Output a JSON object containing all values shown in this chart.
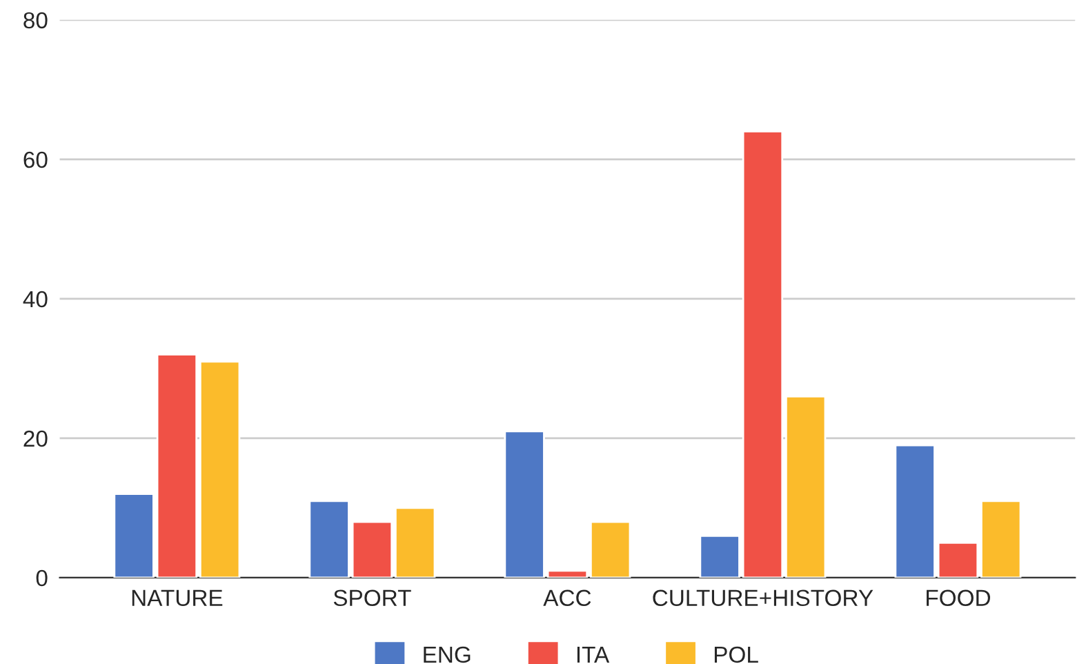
{
  "chart_data": {
    "type": "bar",
    "categories": [
      "NATURE",
      "SPORT",
      "ACC",
      "CULTURE+HISTORY",
      "FOOD"
    ],
    "series": [
      {
        "name": "ENG",
        "color": "#4e78c5",
        "values": [
          12,
          11,
          21,
          6,
          19
        ]
      },
      {
        "name": "ITA",
        "color": "#f05146",
        "values": [
          32,
          8,
          1,
          64,
          5
        ]
      },
      {
        "name": "POL",
        "color": "#fbbb2b",
        "values": [
          31,
          10,
          8,
          26,
          11
        ]
      }
    ],
    "ylim": [
      0,
      80
    ],
    "yticks": [
      0,
      20,
      40,
      60,
      80
    ],
    "grid": "y",
    "legend": "bottom"
  }
}
